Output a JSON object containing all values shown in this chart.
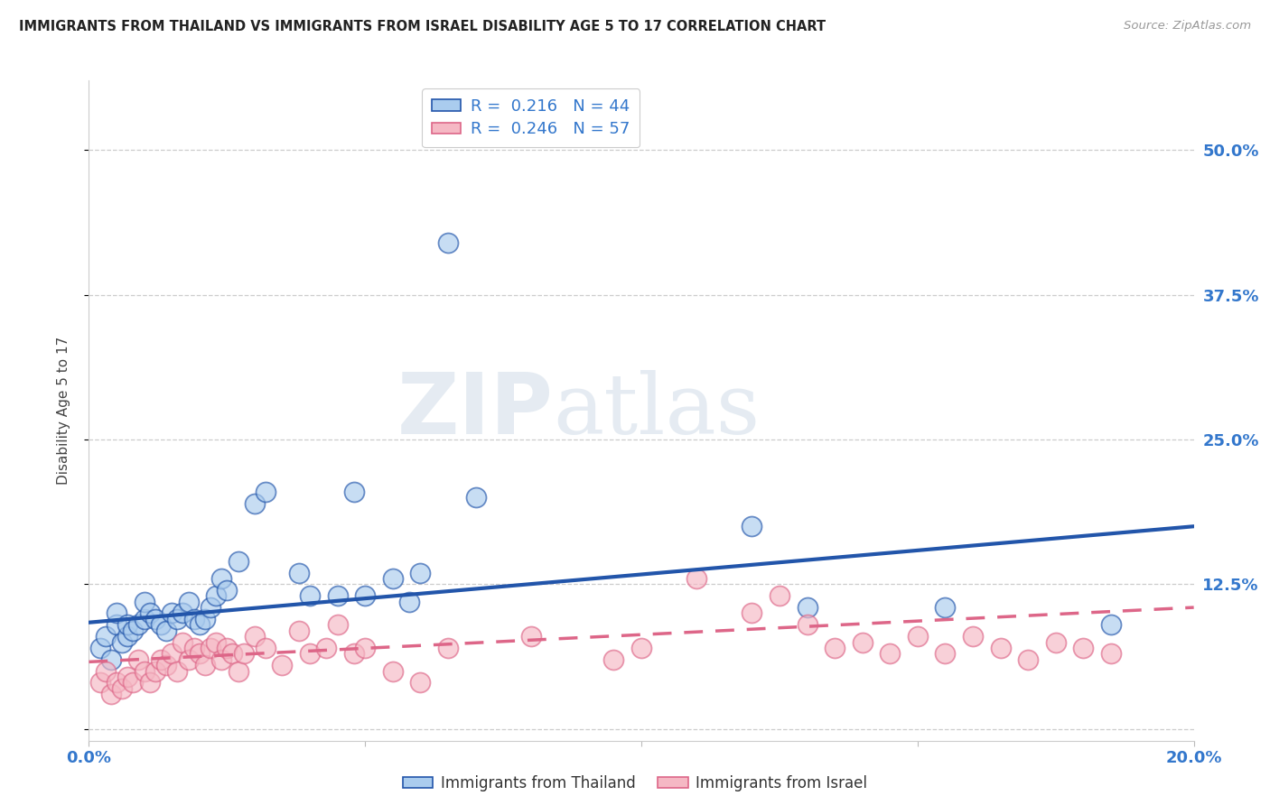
{
  "title": "IMMIGRANTS FROM THAILAND VS IMMIGRANTS FROM ISRAEL DISABILITY AGE 5 TO 17 CORRELATION CHART",
  "source": "Source: ZipAtlas.com",
  "ylabel": "Disability Age 5 to 17",
  "ytick_labels": [
    "",
    "12.5%",
    "25.0%",
    "37.5%",
    "50.0%"
  ],
  "ytick_values": [
    0.0,
    0.125,
    0.25,
    0.375,
    0.5
  ],
  "xlim": [
    0.0,
    0.2
  ],
  "ylim": [
    -0.01,
    0.56
  ],
  "legend_label1": "R =  0.216   N = 44",
  "legend_label2": "R =  0.246   N = 57",
  "color_thailand": "#aaccee",
  "color_israel": "#f5b8c4",
  "line_color_thailand": "#2255aa",
  "line_color_israel": "#dd6688",
  "watermark_zip": "ZIP",
  "watermark_atlas": "atlas",
  "thailand_line_x0": 0.0,
  "thailand_line_y0": 0.092,
  "thailand_line_x1": 0.2,
  "thailand_line_y1": 0.175,
  "israel_line_x0": 0.0,
  "israel_line_y0": 0.058,
  "israel_line_x1": 0.2,
  "israel_line_y1": 0.105,
  "thailand_x": [
    0.002,
    0.003,
    0.004,
    0.005,
    0.005,
    0.006,
    0.007,
    0.007,
    0.008,
    0.009,
    0.01,
    0.01,
    0.011,
    0.012,
    0.013,
    0.014,
    0.015,
    0.016,
    0.017,
    0.018,
    0.019,
    0.02,
    0.021,
    0.022,
    0.023,
    0.024,
    0.025,
    0.027,
    0.03,
    0.032,
    0.038,
    0.04,
    0.045,
    0.048,
    0.05,
    0.055,
    0.058,
    0.06,
    0.065,
    0.07,
    0.12,
    0.13,
    0.155,
    0.185
  ],
  "thailand_y": [
    0.07,
    0.08,
    0.06,
    0.09,
    0.1,
    0.075,
    0.08,
    0.09,
    0.085,
    0.09,
    0.095,
    0.11,
    0.1,
    0.095,
    0.09,
    0.085,
    0.1,
    0.095,
    0.1,
    0.11,
    0.095,
    0.09,
    0.095,
    0.105,
    0.115,
    0.13,
    0.12,
    0.145,
    0.195,
    0.205,
    0.135,
    0.115,
    0.115,
    0.205,
    0.115,
    0.13,
    0.11,
    0.135,
    0.42,
    0.2,
    0.175,
    0.105,
    0.105,
    0.09
  ],
  "israel_x": [
    0.002,
    0.003,
    0.004,
    0.005,
    0.006,
    0.007,
    0.008,
    0.009,
    0.01,
    0.011,
    0.012,
    0.013,
    0.014,
    0.015,
    0.016,
    0.017,
    0.018,
    0.019,
    0.02,
    0.021,
    0.022,
    0.023,
    0.024,
    0.025,
    0.026,
    0.027,
    0.028,
    0.03,
    0.032,
    0.035,
    0.038,
    0.04,
    0.043,
    0.045,
    0.048,
    0.05,
    0.055,
    0.06,
    0.065,
    0.08,
    0.095,
    0.1,
    0.11,
    0.12,
    0.125,
    0.13,
    0.135,
    0.14,
    0.145,
    0.15,
    0.155,
    0.16,
    0.165,
    0.17,
    0.175,
    0.18,
    0.185
  ],
  "israel_y": [
    0.04,
    0.05,
    0.03,
    0.04,
    0.035,
    0.045,
    0.04,
    0.06,
    0.05,
    0.04,
    0.05,
    0.06,
    0.055,
    0.065,
    0.05,
    0.075,
    0.06,
    0.07,
    0.065,
    0.055,
    0.07,
    0.075,
    0.06,
    0.07,
    0.065,
    0.05,
    0.065,
    0.08,
    0.07,
    0.055,
    0.085,
    0.065,
    0.07,
    0.09,
    0.065,
    0.07,
    0.05,
    0.04,
    0.07,
    0.08,
    0.06,
    0.07,
    0.13,
    0.1,
    0.115,
    0.09,
    0.07,
    0.075,
    0.065,
    0.08,
    0.065,
    0.08,
    0.07,
    0.06,
    0.075,
    0.07,
    0.065
  ]
}
